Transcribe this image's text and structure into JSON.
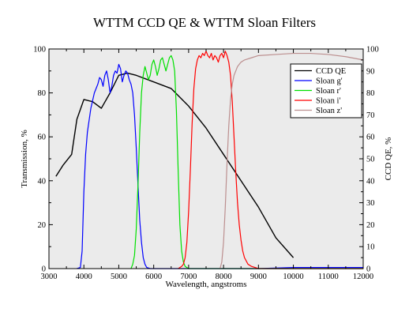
{
  "chart_data": {
    "type": "line",
    "title": "WTTM CCD QE & WTTM Sloan Filters",
    "xlabel": "Wavelength, angstroms",
    "ylabel": "Transmission, %",
    "y2label": "CCD QE, %",
    "xlim": [
      3000,
      12000
    ],
    "ylim": [
      0,
      100
    ],
    "y2lim": [
      0,
      100
    ],
    "x_ticks": [
      3000,
      4000,
      5000,
      6000,
      7000,
      8000,
      9000,
      10000,
      11000,
      12000
    ],
    "y_ticks": [
      0,
      20,
      40,
      60,
      80,
      100
    ],
    "y2_ticks": [
      0,
      10,
      20,
      30,
      40,
      50,
      60,
      70,
      80,
      90,
      100
    ],
    "grid": false,
    "legend_position": "top-right",
    "colors": {
      "background": "#ebebeb",
      "ccd": "#000000",
      "g": "#0000ff",
      "r": "#00e000",
      "i": "#ff0000",
      "z": "#bc8f8f"
    },
    "series": [
      {
        "name": "CCD QE",
        "axis": "right",
        "color": "#000000",
        "x": [
          3200,
          3400,
          3650,
          3800,
          4000,
          4250,
          4500,
          4750,
          5000,
          5250,
          5500,
          6000,
          6500,
          7000,
          7500,
          8000,
          8500,
          9000,
          9500,
          10000
        ],
        "y": [
          42,
          47,
          52,
          68,
          77,
          76,
          73,
          80,
          88,
          89,
          88,
          85,
          82,
          74,
          64,
          52,
          40,
          28,
          14,
          5
        ]
      },
      {
        "name": "Sloan g'",
        "axis": "left",
        "color": "#0000ff",
        "x": [
          3800,
          3900,
          3950,
          4000,
          4050,
          4100,
          4200,
          4300,
          4400,
          4450,
          4500,
          4550,
          4600,
          4650,
          4700,
          4750,
          4800,
          4850,
          4900,
          4950,
          5000,
          5050,
          5100,
          5150,
          5200,
          5250,
          5300,
          5350,
          5400,
          5450,
          5500,
          5550,
          5600,
          5650,
          5700,
          5750,
          5800,
          5900,
          6000,
          6500,
          7000,
          8000,
          9000,
          10000,
          11000,
          12000
        ],
        "y": [
          0,
          0.5,
          8,
          35,
          52,
          62,
          73,
          80,
          84,
          87,
          86,
          83,
          88,
          90,
          86,
          80,
          83,
          88,
          90,
          89,
          93,
          91,
          85,
          88,
          90,
          89,
          86,
          84,
          80,
          70,
          55,
          38,
          22,
          12,
          5,
          2,
          0.5,
          0,
          0,
          0,
          0,
          0,
          0,
          0.5,
          0.5,
          0.5
        ]
      },
      {
        "name": "Sloan r'",
        "axis": "left",
        "color": "#00e000",
        "x": [
          5350,
          5400,
          5450,
          5500,
          5550,
          5600,
          5650,
          5700,
          5750,
          5800,
          5850,
          5900,
          5950,
          6000,
          6050,
          6100,
          6150,
          6200,
          6250,
          6300,
          6350,
          6400,
          6450,
          6500,
          6550,
          6600,
          6650,
          6700,
          6750,
          6800,
          6850,
          6900,
          7000,
          7500,
          8000,
          9000,
          10000,
          11000,
          12000
        ],
        "y": [
          0,
          2,
          6,
          18,
          38,
          62,
          80,
          88,
          92,
          89,
          86,
          88,
          93,
          95,
          92,
          88,
          91,
          95,
          96,
          93,
          90,
          93,
          96,
          97,
          95,
          90,
          72,
          45,
          20,
          8,
          3,
          1,
          0,
          0,
          0,
          0,
          0,
          0,
          0
        ]
      },
      {
        "name": "Sloan i'",
        "axis": "left",
        "color": "#ff0000",
        "x": [
          6700,
          6800,
          6850,
          6900,
          6950,
          7000,
          7050,
          7100,
          7150,
          7200,
          7250,
          7300,
          7350,
          7400,
          7450,
          7500,
          7550,
          7600,
          7650,
          7700,
          7750,
          7800,
          7850,
          7900,
          7950,
          8000,
          8050,
          8100,
          8150,
          8200,
          8250,
          8300,
          8350,
          8400,
          8450,
          8500,
          8550,
          8600,
          8700,
          8800,
          8900,
          9000,
          9500,
          10000,
          11000,
          12000
        ],
        "y": [
          0,
          1,
          2,
          5,
          12,
          26,
          45,
          66,
          82,
          91,
          95,
          97,
          96,
          98,
          97,
          99,
          97,
          96,
          98,
          95,
          97,
          96,
          94,
          97,
          98,
          96,
          99,
          97,
          94,
          88,
          76,
          60,
          44,
          30,
          20,
          13,
          8,
          5,
          2,
          1,
          0.5,
          0,
          0,
          0,
          0,
          0
        ]
      },
      {
        "name": "Sloan z'",
        "axis": "left",
        "color": "#bc8f8f",
        "x": [
          7900,
          7950,
          8000,
          8050,
          8100,
          8150,
          8200,
          8250,
          8300,
          8350,
          8400,
          8500,
          8600,
          8800,
          9000,
          9500,
          10000,
          10500,
          11000,
          11500,
          12000
        ],
        "y": [
          0,
          3,
          12,
          28,
          48,
          65,
          77,
          84,
          88,
          90,
          92,
          94,
          95,
          96,
          97,
          97.5,
          98,
          98,
          97.5,
          96.5,
          95
        ]
      }
    ]
  }
}
